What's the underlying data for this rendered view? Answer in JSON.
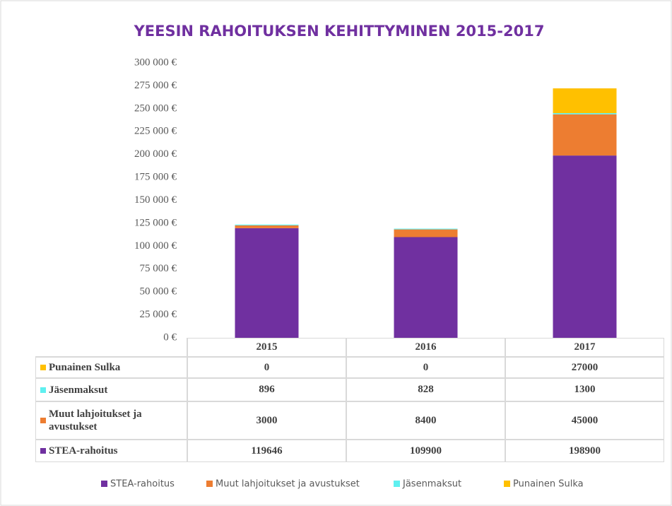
{
  "chart_data": {
    "type": "stacked_bar",
    "title": "YEESIN RAHOITUKSEN KEHITTYMINEN 2015-2017",
    "categories": [
      "2015",
      "2016",
      "2017"
    ],
    "series": [
      {
        "name": "STEA-rahoitus",
        "color": "#7030a0",
        "values": [
          119646,
          109900,
          198900
        ]
      },
      {
        "name": "Muut lahjoitukset ja avustukset",
        "color": "#ed7d31",
        "values": [
          3000,
          8400,
          45000
        ]
      },
      {
        "name": "Jäsenmaksut",
        "color": "#5ff0f0",
        "values": [
          896,
          828,
          1300
        ]
      },
      {
        "name": "Punainen Sulka",
        "color": "#ffc000",
        "values": [
          0,
          0,
          27000
        ]
      }
    ],
    "ylim": [
      0,
      300000
    ],
    "yticks": [
      {
        "value": 0,
        "label": "0 €"
      },
      {
        "value": 25000,
        "label": "25 000 €"
      },
      {
        "value": 50000,
        "label": "50 000 €"
      },
      {
        "value": 75000,
        "label": "75 000 €"
      },
      {
        "value": 100000,
        "label": "100 000 €"
      },
      {
        "value": 125000,
        "label": "125 000 €"
      },
      {
        "value": 150000,
        "label": "150 000 €"
      },
      {
        "value": 175000,
        "label": "175 000 €"
      },
      {
        "value": 200000,
        "label": "200 000 €"
      },
      {
        "value": 225000,
        "label": "225 000 €"
      },
      {
        "value": 250000,
        "label": "250 000 €"
      },
      {
        "value": 275000,
        "label": "275 000 €"
      },
      {
        "value": 300000,
        "label": "300 000 €"
      }
    ],
    "legend": "bottom"
  }
}
